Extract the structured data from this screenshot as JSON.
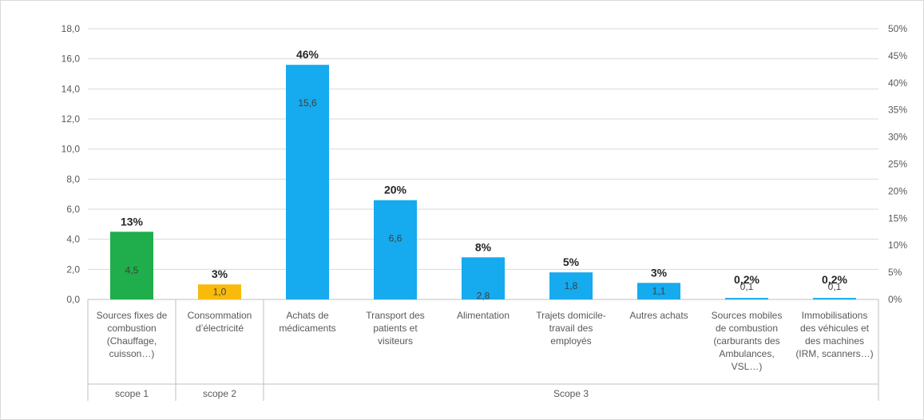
{
  "chart_data": {
    "type": "bar",
    "categories": [
      [
        "Sources fixes de",
        "combustion",
        "(Chauffage,",
        "cuisson…)"
      ],
      [
        "Consommation",
        "d’électricité"
      ],
      [
        "Achats de",
        "médicaments"
      ],
      [
        "Transport des",
        "patients et",
        "visiteurs"
      ],
      [
        "Alimentation"
      ],
      [
        "Trajets domicile-",
        "travail des",
        "employés"
      ],
      [
        "Autres achats"
      ],
      [
        "Sources mobiles",
        "de combustion",
        "(carburants des",
        "Ambulances,",
        "VSL…)"
      ],
      [
        "Immobilisations",
        "des véhicules et",
        "des machines",
        "(IRM, scanners…)"
      ]
    ],
    "values": [
      4.5,
      1.0,
      15.6,
      6.6,
      2.8,
      1.8,
      1.1,
      0.1,
      0.1
    ],
    "value_labels": [
      "4,5",
      "1,0",
      "15,6",
      "6,6",
      "2,8",
      "1,8",
      "1,1",
      "0,1",
      "0,1"
    ],
    "percent_labels": [
      "13%",
      "3%",
      "46%",
      "20%",
      "8%",
      "5%",
      "3%",
      "0,2%",
      "0,2%"
    ],
    "bar_colors": [
      "#1fae4b",
      "#f8bb0c",
      "#16aaee",
      "#16aaee",
      "#16aaee",
      "#16aaee",
      "#16aaee",
      "#16aaee",
      "#16aaee"
    ],
    "groups": [
      {
        "label": "scope 1",
        "span": 1
      },
      {
        "label": "scope 2",
        "span": 1
      },
      {
        "label": "Scope 3",
        "span": 7
      }
    ],
    "ylim": [
      0,
      18
    ],
    "yticks": [
      "0,0",
      "2,0",
      "4,0",
      "6,0",
      "8,0",
      "10,0",
      "12,0",
      "14,0",
      "16,0",
      "18,0"
    ],
    "y2lim": [
      0,
      50
    ],
    "y2ticks": [
      "0%",
      "5%",
      "10%",
      "15%",
      "20%",
      "25%",
      "30%",
      "35%",
      "40%",
      "45%",
      "50%"
    ],
    "grid": true,
    "title": "",
    "xlabel": "",
    "ylabel": ""
  }
}
